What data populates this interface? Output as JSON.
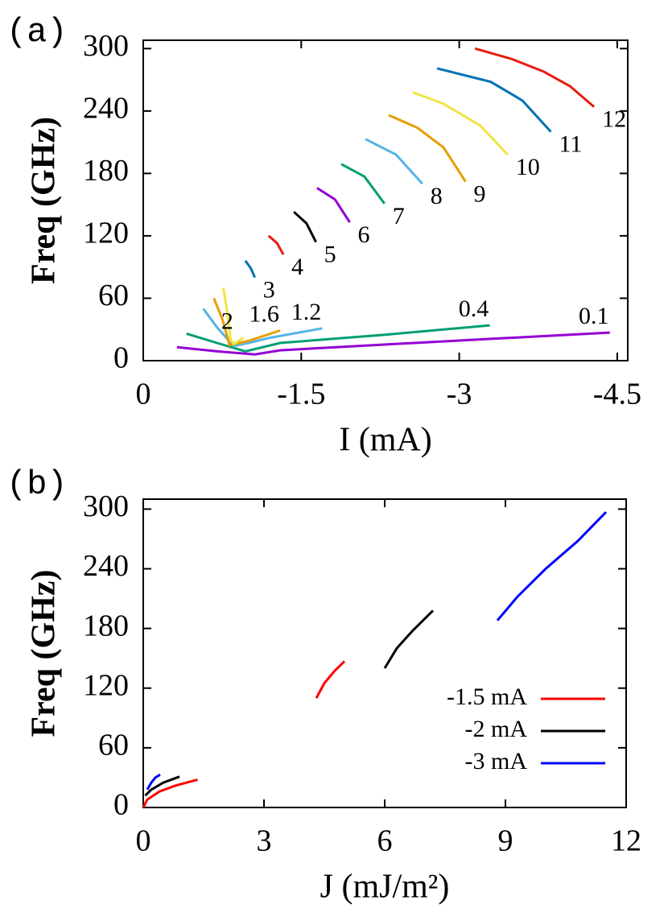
{
  "chart_data": [
    {
      "type": "line",
      "panel_label": "(a)",
      "x_label": "I (mA)",
      "y_label": "Freq (GHz)",
      "xlim": [
        0,
        -4.6
      ],
      "xticks": [
        0,
        -1.5,
        -3,
        -4.5
      ],
      "ylim": [
        0,
        308
      ],
      "yticks": [
        0,
        60,
        120,
        180,
        240,
        300
      ],
      "series_labels": "at-curve",
      "series": [
        {
          "name": "0.1",
          "color": "#9400d3",
          "x": [
            -0.32,
            -0.7,
            -1.06,
            -1.3,
            -2.2,
            -3.3,
            -4.43
          ],
          "values": [
            13,
            9,
            6,
            10,
            15,
            21,
            27
          ]
        },
        {
          "name": "0.4",
          "color": "#009e73",
          "x": [
            -0.41,
            -0.7,
            -0.97,
            -1.3,
            -2.3,
            -3.29
          ],
          "values": [
            26,
            17,
            9,
            17,
            25,
            34
          ]
        },
        {
          "name": "1.2",
          "color": "#56b4e9",
          "x": [
            -0.57,
            -0.7,
            -0.86,
            -1.0,
            -1.2,
            -1.7
          ],
          "values": [
            50,
            32,
            14,
            17,
            22,
            31
          ]
        },
        {
          "name": "1.6",
          "color": "#e69f00",
          "x": [
            -0.67,
            -0.75,
            -0.82,
            -1.0,
            -1.3
          ],
          "values": [
            60,
            40,
            15,
            19,
            29
          ]
        },
        {
          "name": "2",
          "color": "#f0e442",
          "x": [
            -0.76,
            -0.8,
            -0.83,
            -0.86,
            -0.95
          ],
          "values": [
            70,
            45,
            20,
            16,
            22
          ]
        },
        {
          "name": "3",
          "color": "#0072b2",
          "x": [
            -0.97,
            -1.02,
            -1.06
          ],
          "values": [
            96,
            89,
            80
          ]
        },
        {
          "name": "4",
          "color": "#e51e10",
          "x": [
            -1.19,
            -1.27,
            -1.33
          ],
          "values": [
            120,
            113,
            102
          ]
        },
        {
          "name": "5",
          "color": "#000000",
          "x": [
            -1.43,
            -1.55,
            -1.64
          ],
          "values": [
            143,
            132,
            114
          ]
        },
        {
          "name": "6",
          "color": "#9400d3",
          "x": [
            -1.65,
            -1.82,
            -1.96
          ],
          "values": [
            166,
            155,
            133
          ]
        },
        {
          "name": "7",
          "color": "#009e73",
          "x": [
            -1.88,
            -2.1,
            -2.29
          ],
          "values": [
            189,
            177,
            151
          ]
        },
        {
          "name": "8",
          "color": "#56b4e9",
          "x": [
            -2.11,
            -2.4,
            -2.65
          ],
          "values": [
            213,
            198,
            170
          ]
        },
        {
          "name": "9",
          "color": "#e69f00",
          "x": [
            -2.33,
            -2.6,
            -2.85,
            -3.06
          ],
          "values": [
            236,
            224,
            205,
            172
          ]
        },
        {
          "name": "10",
          "color": "#f0e442",
          "x": [
            -2.56,
            -2.85,
            -3.2,
            -3.46
          ],
          "values": [
            258,
            247,
            226,
            198
          ]
        },
        {
          "name": "11",
          "color": "#0072b2",
          "x": [
            -2.79,
            -3.3,
            -3.6,
            -3.87
          ],
          "values": [
            281,
            268,
            250,
            220
          ]
        },
        {
          "name": "12",
          "color": "#e51e10",
          "x": [
            -3.15,
            -3.5,
            -3.8,
            -4.05,
            -4.28
          ],
          "values": [
            300,
            290,
            278,
            264,
            244
          ]
        }
      ]
    },
    {
      "type": "line",
      "panel_label": "(b)",
      "x_label": "J (mJ/m²)",
      "y_label": "Freq (GHz)",
      "xlim": [
        0,
        12
      ],
      "xticks": [
        0,
        3,
        6,
        9,
        12
      ],
      "ylim": [
        0,
        310
      ],
      "yticks": [
        0,
        60,
        120,
        180,
        240,
        300
      ],
      "legend": "lower-right",
      "series": [
        {
          "name": "-1.5 mA",
          "color": "#ff0000",
          "x": [
            0,
            0.1,
            0.4,
            0.8,
            1.35,
            null,
            4.3,
            4.5,
            4.75,
            5.0
          ],
          "values": [
            0,
            8,
            16,
            22,
            28,
            null,
            110,
            125,
            137,
            147
          ]
        },
        {
          "name": "-2 mA",
          "color": "#000000",
          "x": [
            0.05,
            0.2,
            0.5,
            0.9,
            null,
            6.0,
            6.3,
            6.7,
            7.2
          ],
          "values": [
            12,
            18,
            25,
            31,
            null,
            140,
            160,
            178,
            198
          ]
        },
        {
          "name": "-3 mA",
          "color": "#0000ff",
          "x": [
            0.1,
            0.2,
            0.3,
            0.42,
            null,
            8.8,
            9.3,
            10.0,
            10.8,
            11.5
          ],
          "values": [
            18,
            25,
            30,
            33,
            null,
            188,
            212,
            240,
            268,
            297
          ]
        }
      ]
    }
  ]
}
